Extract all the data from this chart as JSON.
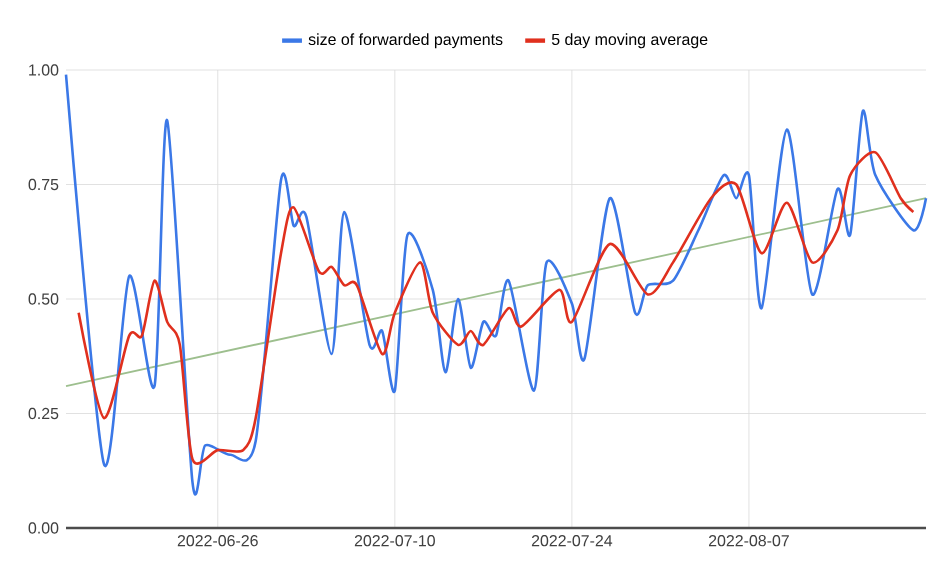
{
  "chart_data": {
    "type": "line",
    "xlim": [
      "2022-06-14",
      "2022-08-21"
    ],
    "ylim": [
      0,
      1
    ],
    "xticks": [
      "2022-06-26",
      "2022-07-10",
      "2022-07-24",
      "2022-08-07"
    ],
    "yticks": [
      {
        "value": 0,
        "label": "0.00"
      },
      {
        "value": 0.25,
        "label": "0.25"
      },
      {
        "value": 0.5,
        "label": "0.50"
      },
      {
        "value": 0.75,
        "label": "0.75"
      },
      {
        "value": 1,
        "label": "1.00"
      }
    ],
    "grid": true,
    "legend": "top",
    "series": [
      {
        "name": "size of forwarded payments",
        "color": "#3b78e7",
        "x": [
          "2022-06-14",
          "2022-06-17",
          "2022-06-19",
          "2022-06-21",
          "2022-06-22",
          "2022-06-24",
          "2022-06-25",
          "2022-06-27",
          "2022-06-29",
          "2022-07-01",
          "2022-07-02",
          "2022-07-03",
          "2022-07-05",
          "2022-07-06",
          "2022-07-08",
          "2022-07-09",
          "2022-07-10",
          "2022-07-11",
          "2022-07-13",
          "2022-07-14",
          "2022-07-15",
          "2022-07-16",
          "2022-07-17",
          "2022-07-18",
          "2022-07-19",
          "2022-07-21",
          "2022-07-22",
          "2022-07-24",
          "2022-07-25",
          "2022-07-27",
          "2022-07-29",
          "2022-07-30",
          "2022-08-01",
          "2022-08-03",
          "2022-08-05",
          "2022-08-06",
          "2022-08-07",
          "2022-08-08",
          "2022-08-10",
          "2022-08-12",
          "2022-08-14",
          "2022-08-15",
          "2022-08-16",
          "2022-08-17",
          "2022-08-20",
          "2022-08-21"
        ],
        "values": [
          0.99,
          0.14,
          0.55,
          0.31,
          0.89,
          0.1,
          0.18,
          0.16,
          0.19,
          0.76,
          0.66,
          0.68,
          0.38,
          0.69,
          0.4,
          0.43,
          0.3,
          0.64,
          0.52,
          0.34,
          0.5,
          0.35,
          0.45,
          0.42,
          0.54,
          0.3,
          0.58,
          0.49,
          0.37,
          0.72,
          0.47,
          0.53,
          0.54,
          0.65,
          0.77,
          0.72,
          0.77,
          0.48,
          0.87,
          0.51,
          0.74,
          0.64,
          0.91,
          0.77,
          0.65,
          0.72
        ]
      },
      {
        "name": "5 day moving average",
        "color": "#e0301e",
        "x": [
          "2022-06-15",
          "2022-06-17",
          "2022-06-19",
          "2022-06-20",
          "2022-06-21",
          "2022-06-22",
          "2022-06-23",
          "2022-06-24",
          "2022-06-26",
          "2022-06-28",
          "2022-06-29",
          "2022-07-01",
          "2022-07-02",
          "2022-07-04",
          "2022-07-05",
          "2022-07-06",
          "2022-07-07",
          "2022-07-09",
          "2022-07-10",
          "2022-07-12",
          "2022-07-13",
          "2022-07-15",
          "2022-07-16",
          "2022-07-17",
          "2022-07-19",
          "2022-07-20",
          "2022-07-23",
          "2022-07-24",
          "2022-07-27",
          "2022-07-30",
          "2022-08-01",
          "2022-08-04",
          "2022-08-06",
          "2022-08-08",
          "2022-08-10",
          "2022-08-12",
          "2022-08-14",
          "2022-08-15",
          "2022-08-17",
          "2022-08-19",
          "2022-08-20"
        ],
        "values": [
          0.47,
          0.24,
          0.42,
          0.42,
          0.54,
          0.45,
          0.4,
          0.15,
          0.17,
          0.17,
          0.24,
          0.6,
          0.7,
          0.56,
          0.57,
          0.53,
          0.53,
          0.38,
          0.47,
          0.58,
          0.47,
          0.4,
          0.43,
          0.4,
          0.48,
          0.44,
          0.52,
          0.45,
          0.62,
          0.51,
          0.58,
          0.72,
          0.75,
          0.6,
          0.71,
          0.58,
          0.65,
          0.77,
          0.82,
          0.72,
          0.69
        ]
      },
      {
        "type": "line",
        "color": "#9dbf8e",
        "x": [
          "2022-06-14",
          "2022-08-21"
        ],
        "values": [
          0.31,
          0.72
        ]
      }
    ]
  }
}
